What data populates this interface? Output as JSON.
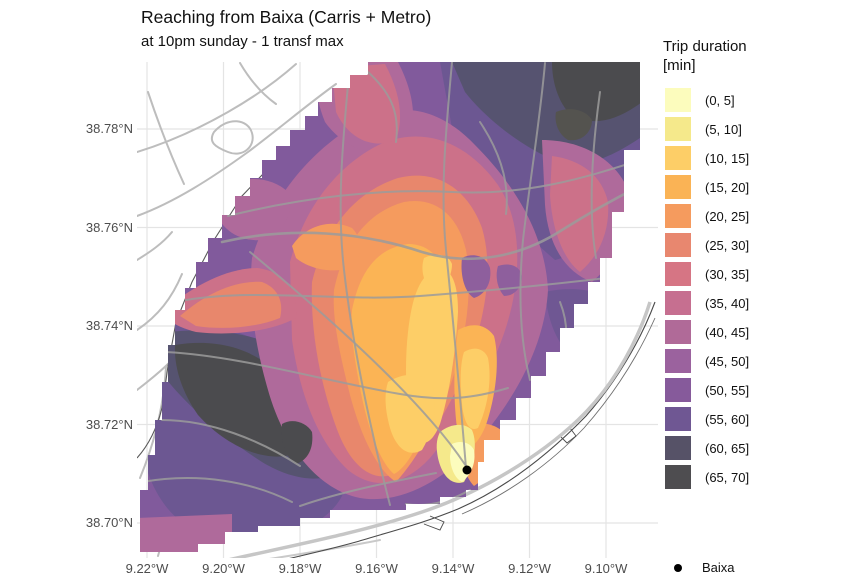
{
  "title": "Reaching from Baixa (Carris + Metro)",
  "subtitle": "at 10pm sunday - 1 transf max",
  "legend": {
    "title": "Trip duration\n[min]",
    "bins": [
      {
        "label": "(0, 5]",
        "color": "#FCFCBD"
      },
      {
        "label": "(5, 10]",
        "color": "#F5E98B"
      },
      {
        "label": "(10, 15]",
        "color": "#FDCE67"
      },
      {
        "label": "(15, 20]",
        "color": "#FAB355"
      },
      {
        "label": "(20, 25]",
        "color": "#F59B5E"
      },
      {
        "label": "(25, 30]",
        "color": "#E8876F"
      },
      {
        "label": "(30, 35]",
        "color": "#D67584"
      },
      {
        "label": "(35, 40]",
        "color": "#C66F90"
      },
      {
        "label": "(40, 45]",
        "color": "#B06A98"
      },
      {
        "label": "(45, 50]",
        "color": "#9B629E"
      },
      {
        "label": "(50, 55]",
        "color": "#865A9B"
      },
      {
        "label": "(55, 60]",
        "color": "#6F5793"
      },
      {
        "label": "(60, 65]",
        "color": "#565267"
      },
      {
        "label": "(65, 70]",
        "color": "#4E4D50"
      }
    ],
    "origin": {
      "label": "Baixa",
      "marker_color": "#000000"
    }
  },
  "axes": {
    "x_ticks": [
      "9.22°W",
      "9.20°W",
      "9.18°W",
      "9.16°W",
      "9.14°W",
      "9.12°W",
      "9.10°W"
    ],
    "y_ticks": [
      "38.78°N",
      "38.76°N",
      "38.74°N",
      "38.72°N",
      "38.70°N"
    ]
  },
  "map": {
    "origin_point_label": "Baixa",
    "gridline_color": "#E4E4E4",
    "road_color": "#9B9B9B",
    "coast_color": "#4A4A4A"
  }
}
